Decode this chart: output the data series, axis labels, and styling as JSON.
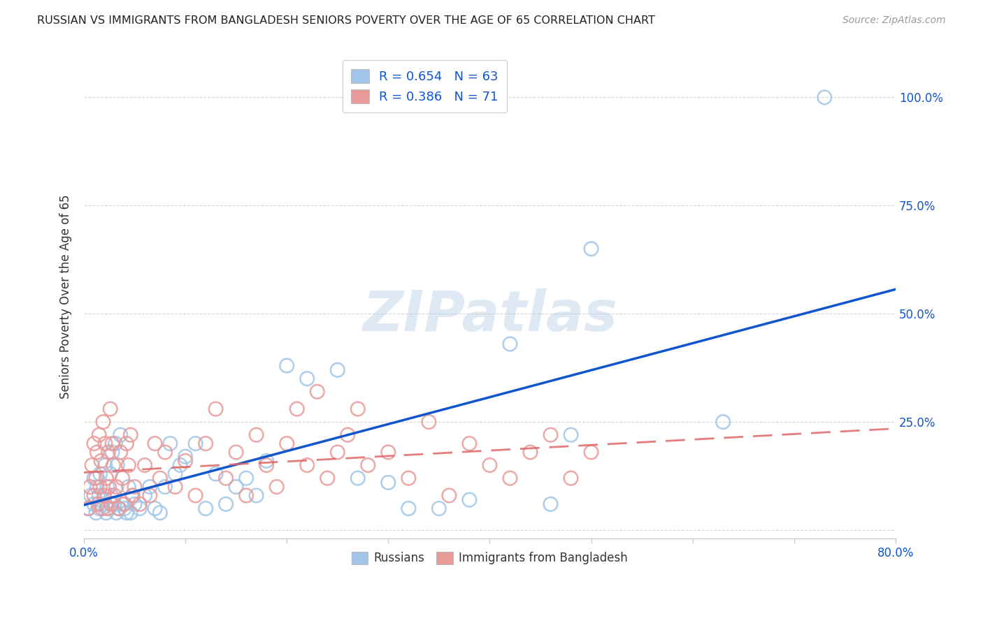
{
  "title": "RUSSIAN VS IMMIGRANTS FROM BANGLADESH SENIORS POVERTY OVER THE AGE OF 65 CORRELATION CHART",
  "source": "Source: ZipAtlas.com",
  "ylabel": "Seniors Poverty Over the Age of 65",
  "xlim": [
    0.0,
    0.8
  ],
  "ylim": [
    -0.02,
    1.1
  ],
  "x_tick_positions": [
    0.0,
    0.1,
    0.2,
    0.3,
    0.4,
    0.5,
    0.6,
    0.7,
    0.8
  ],
  "x_tick_labels": [
    "0.0%",
    "",
    "",
    "",
    "",
    "",
    "",
    "",
    "80.0%"
  ],
  "y_tick_positions": [
    0.0,
    0.25,
    0.5,
    0.75,
    1.0
  ],
  "y_tick_labels": [
    "",
    "25.0%",
    "50.0%",
    "75.0%",
    "100.0%"
  ],
  "blue_R": 0.654,
  "blue_N": 63,
  "pink_R": 0.386,
  "pink_N": 71,
  "blue_color": "#9fc5e8",
  "pink_color": "#ea9999",
  "blue_line_color": "#1155cc",
  "pink_line_color": "#e06666",
  "watermark": "ZIPatlas",
  "blue_scatter_x": [
    0.005,
    0.007,
    0.01,
    0.01,
    0.012,
    0.013,
    0.015,
    0.015,
    0.016,
    0.018,
    0.02,
    0.021,
    0.022,
    0.023,
    0.025,
    0.026,
    0.027,
    0.028,
    0.03,
    0.031,
    0.032,
    0.033,
    0.035,
    0.036,
    0.038,
    0.04,
    0.042,
    0.044,
    0.046,
    0.048,
    0.05,
    0.055,
    0.06,
    0.065,
    0.07,
    0.075,
    0.08,
    0.085,
    0.09,
    0.095,
    0.1,
    0.11,
    0.12,
    0.13,
    0.14,
    0.15,
    0.16,
    0.17,
    0.18,
    0.2,
    0.22,
    0.25,
    0.27,
    0.3,
    0.32,
    0.35,
    0.38,
    0.42,
    0.46,
    0.48,
    0.5,
    0.63,
    0.73
  ],
  "blue_scatter_y": [
    0.05,
    0.08,
    0.06,
    0.12,
    0.04,
    0.1,
    0.05,
    0.08,
    0.13,
    0.06,
    0.07,
    0.15,
    0.04,
    0.1,
    0.05,
    0.13,
    0.08,
    0.18,
    0.06,
    0.2,
    0.04,
    0.15,
    0.05,
    0.22,
    0.06,
    0.05,
    0.04,
    0.1,
    0.04,
    0.08,
    0.06,
    0.05,
    0.08,
    0.1,
    0.05,
    0.04,
    0.1,
    0.2,
    0.13,
    0.15,
    0.17,
    0.2,
    0.05,
    0.13,
    0.06,
    0.1,
    0.12,
    0.08,
    0.16,
    0.38,
    0.35,
    0.37,
    0.12,
    0.11,
    0.05,
    0.05,
    0.07,
    0.43,
    0.06,
    0.22,
    0.65,
    0.25,
    1.0
  ],
  "pink_scatter_x": [
    0.004,
    0.006,
    0.008,
    0.01,
    0.01,
    0.012,
    0.013,
    0.014,
    0.015,
    0.016,
    0.017,
    0.018,
    0.019,
    0.02,
    0.021,
    0.022,
    0.023,
    0.024,
    0.025,
    0.026,
    0.027,
    0.028,
    0.029,
    0.03,
    0.032,
    0.034,
    0.036,
    0.038,
    0.04,
    0.042,
    0.044,
    0.046,
    0.048,
    0.05,
    0.055,
    0.06,
    0.065,
    0.07,
    0.075,
    0.08,
    0.09,
    0.1,
    0.11,
    0.12,
    0.13,
    0.14,
    0.15,
    0.16,
    0.17,
    0.18,
    0.19,
    0.2,
    0.21,
    0.22,
    0.23,
    0.24,
    0.25,
    0.26,
    0.27,
    0.28,
    0.3,
    0.32,
    0.34,
    0.36,
    0.38,
    0.4,
    0.42,
    0.44,
    0.46,
    0.48,
    0.5
  ],
  "pink_scatter_y": [
    0.05,
    0.1,
    0.15,
    0.08,
    0.2,
    0.12,
    0.18,
    0.06,
    0.22,
    0.1,
    0.16,
    0.05,
    0.25,
    0.08,
    0.2,
    0.12,
    0.05,
    0.18,
    0.1,
    0.28,
    0.06,
    0.2,
    0.15,
    0.08,
    0.1,
    0.05,
    0.18,
    0.12,
    0.06,
    0.2,
    0.15,
    0.22,
    0.08,
    0.1,
    0.06,
    0.15,
    0.08,
    0.2,
    0.12,
    0.18,
    0.1,
    0.16,
    0.08,
    0.2,
    0.28,
    0.12,
    0.18,
    0.08,
    0.22,
    0.15,
    0.1,
    0.2,
    0.28,
    0.15,
    0.32,
    0.12,
    0.18,
    0.22,
    0.28,
    0.15,
    0.18,
    0.12,
    0.25,
    0.08,
    0.2,
    0.15,
    0.12,
    0.18,
    0.22,
    0.12,
    0.18
  ]
}
